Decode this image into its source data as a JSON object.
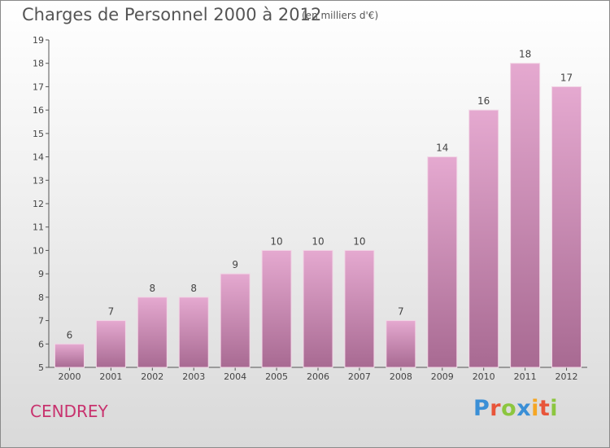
{
  "header": {
    "title": "Charges de Personnel 2000 à 2012",
    "unit": "(en milliers d'€)"
  },
  "footer": {
    "place": "CENDREY",
    "logo": "Proxiti",
    "logo_colors": [
      "#3a8fd6",
      "#e8553a",
      "#8cc63f",
      "#3a8fd6",
      "#f5a623",
      "#e8553a",
      "#8cc63f"
    ]
  },
  "colors": {
    "bar_top": "#e5a9d0",
    "bar_bottom": "#a86a92",
    "axis": "#555555",
    "label": "#444444"
  },
  "chart_data": {
    "type": "bar",
    "categories": [
      "2000",
      "2001",
      "2002",
      "2003",
      "2004",
      "2005",
      "2006",
      "2007",
      "2008",
      "2009",
      "2010",
      "2011",
      "2012"
    ],
    "values": [
      6,
      7,
      8,
      8,
      9,
      10,
      10,
      10,
      7,
      14,
      16,
      18,
      17
    ],
    "yticks": [
      "5",
      "6",
      "7",
      "8",
      "9",
      "10",
      "11",
      "12",
      "13",
      "14",
      "15",
      "16",
      "17",
      "18",
      "19"
    ],
    "ylim": [
      5,
      19
    ],
    "grid": false
  }
}
